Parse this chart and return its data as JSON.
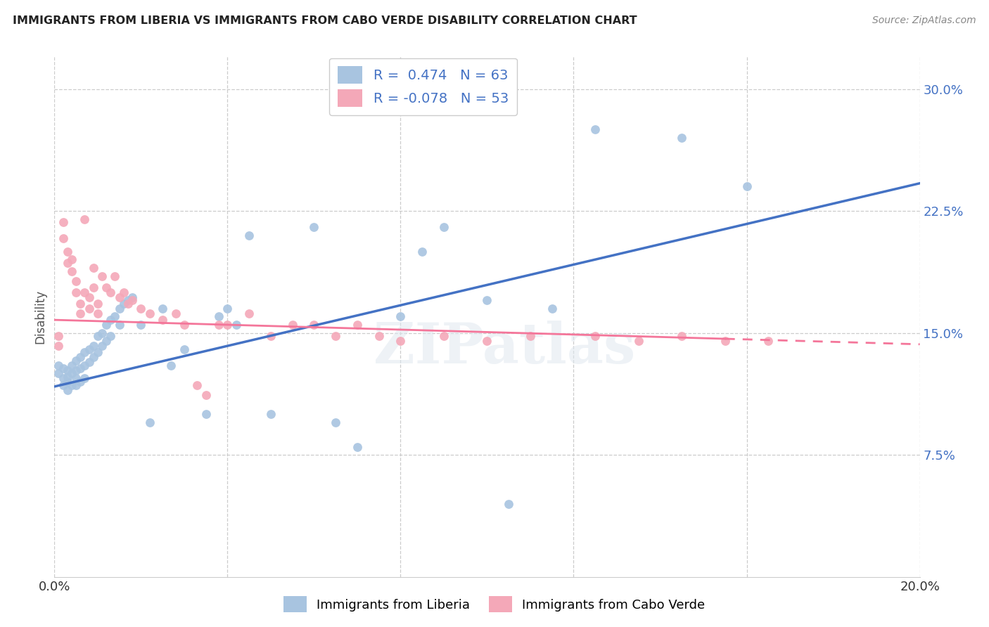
{
  "title": "IMMIGRANTS FROM LIBERIA VS IMMIGRANTS FROM CABO VERDE DISABILITY CORRELATION CHART",
  "source": "Source: ZipAtlas.com",
  "ylabel": "Disability",
  "xlim": [
    0.0,
    0.2
  ],
  "ylim": [
    0.0,
    0.32
  ],
  "yticks": [
    0.075,
    0.15,
    0.225,
    0.3
  ],
  "ytick_labels": [
    "7.5%",
    "15.0%",
    "22.5%",
    "30.0%"
  ],
  "xticks": [
    0.0,
    0.04,
    0.08,
    0.12,
    0.16,
    0.2
  ],
  "xtick_labels": [
    "0.0%",
    "",
    "",
    "",
    "",
    "20.0%"
  ],
  "liberia_R": 0.474,
  "liberia_N": 63,
  "caboverde_R": -0.078,
  "caboverde_N": 53,
  "liberia_color": "#a8c4e0",
  "caboverde_color": "#f4a8b8",
  "liberia_line_color": "#4472c4",
  "caboverde_line_color": "#f4769a",
  "background_color": "#ffffff",
  "watermark": "ZIPatlas",
  "liberia_x": [
    0.001,
    0.001,
    0.002,
    0.002,
    0.002,
    0.003,
    0.003,
    0.003,
    0.003,
    0.004,
    0.004,
    0.004,
    0.005,
    0.005,
    0.005,
    0.005,
    0.006,
    0.006,
    0.006,
    0.007,
    0.007,
    0.007,
    0.008,
    0.008,
    0.009,
    0.009,
    0.01,
    0.01,
    0.011,
    0.011,
    0.012,
    0.012,
    0.013,
    0.013,
    0.014,
    0.015,
    0.015,
    0.016,
    0.017,
    0.018,
    0.02,
    0.022,
    0.025,
    0.027,
    0.03,
    0.035,
    0.038,
    0.04,
    0.042,
    0.045,
    0.05,
    0.06,
    0.065,
    0.07,
    0.08,
    0.085,
    0.09,
    0.1,
    0.105,
    0.115,
    0.125,
    0.145,
    0.16
  ],
  "liberia_y": [
    0.13,
    0.125,
    0.128,
    0.122,
    0.118,
    0.127,
    0.123,
    0.12,
    0.115,
    0.13,
    0.125,
    0.118,
    0.133,
    0.127,
    0.122,
    0.118,
    0.135,
    0.128,
    0.12,
    0.138,
    0.13,
    0.122,
    0.14,
    0.132,
    0.142,
    0.135,
    0.148,
    0.138,
    0.15,
    0.142,
    0.155,
    0.145,
    0.158,
    0.148,
    0.16,
    0.165,
    0.155,
    0.168,
    0.17,
    0.172,
    0.155,
    0.095,
    0.165,
    0.13,
    0.14,
    0.1,
    0.16,
    0.165,
    0.155,
    0.21,
    0.1,
    0.215,
    0.095,
    0.08,
    0.16,
    0.2,
    0.215,
    0.17,
    0.045,
    0.165,
    0.275,
    0.27,
    0.24
  ],
  "caboverde_x": [
    0.001,
    0.001,
    0.002,
    0.002,
    0.003,
    0.003,
    0.004,
    0.004,
    0.005,
    0.005,
    0.006,
    0.006,
    0.007,
    0.007,
    0.008,
    0.008,
    0.009,
    0.009,
    0.01,
    0.01,
    0.011,
    0.012,
    0.013,
    0.014,
    0.015,
    0.016,
    0.017,
    0.018,
    0.02,
    0.022,
    0.025,
    0.028,
    0.03,
    0.033,
    0.035,
    0.038,
    0.04,
    0.045,
    0.05,
    0.055,
    0.06,
    0.065,
    0.07,
    0.075,
    0.08,
    0.09,
    0.1,
    0.11,
    0.125,
    0.135,
    0.145,
    0.155,
    0.165
  ],
  "caboverde_y": [
    0.148,
    0.142,
    0.218,
    0.208,
    0.2,
    0.193,
    0.195,
    0.188,
    0.182,
    0.175,
    0.168,
    0.162,
    0.22,
    0.175,
    0.172,
    0.165,
    0.19,
    0.178,
    0.168,
    0.162,
    0.185,
    0.178,
    0.175,
    0.185,
    0.172,
    0.175,
    0.168,
    0.17,
    0.165,
    0.162,
    0.158,
    0.162,
    0.155,
    0.118,
    0.112,
    0.155,
    0.155,
    0.162,
    0.148,
    0.155,
    0.155,
    0.148,
    0.155,
    0.148,
    0.145,
    0.148,
    0.145,
    0.148,
    0.148,
    0.145,
    0.148,
    0.145,
    0.145
  ],
  "liberia_line_x0": 0.0,
  "liberia_line_x1": 0.2,
  "liberia_line_y0": 0.117,
  "liberia_line_y1": 0.242,
  "caboverde_line_x0": 0.0,
  "caboverde_line_x1": 0.2,
  "caboverde_line_y0": 0.158,
  "caboverde_line_y1": 0.143,
  "caboverde_dash_split": 0.155
}
